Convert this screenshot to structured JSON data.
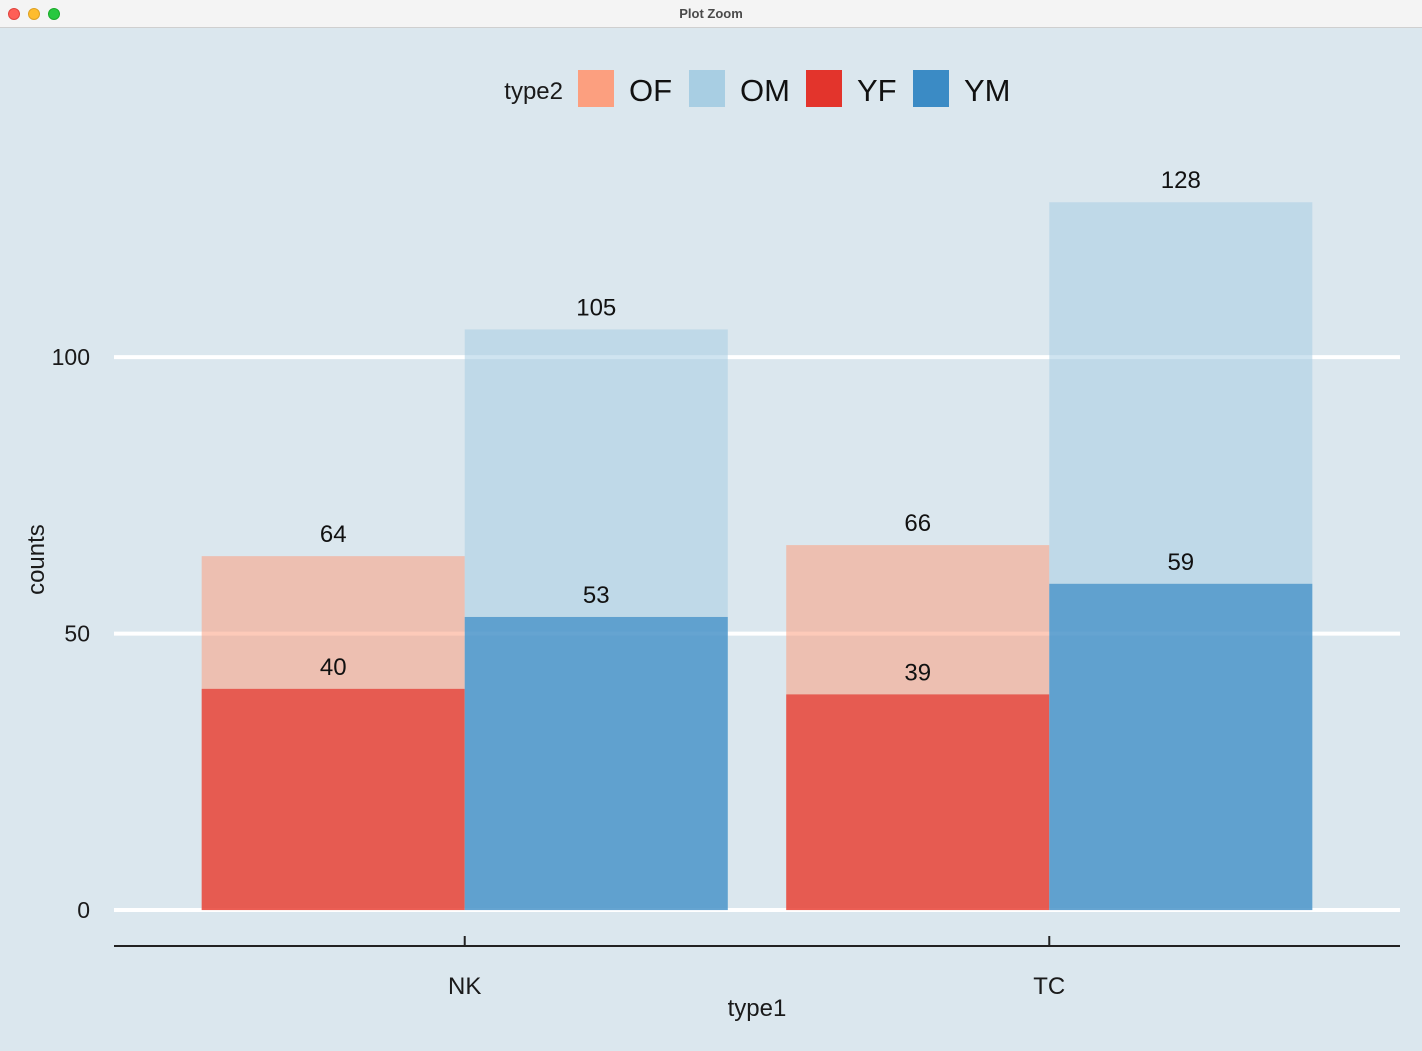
{
  "window": {
    "title": "Plot Zoom"
  },
  "colors": {
    "background": "#dbe7ee",
    "OF": "#fc9f7f",
    "OM": "#a8cee3",
    "YF": "#e3342c",
    "YM": "#3b8bc5"
  },
  "chart_data": {
    "type": "bar",
    "title": "",
    "xlabel": "type1",
    "ylabel": "counts",
    "legend_title": "type2",
    "legend_position": "top",
    "legend": [
      "OF",
      "OM",
      "YF",
      "YM"
    ],
    "categories": [
      "NK",
      "TC"
    ],
    "ylim": [
      -6.5,
      136
    ],
    "yticks": [
      0,
      50,
      100
    ],
    "grid": "horizontal",
    "series": [
      {
        "name": "OF",
        "group": "F",
        "values": [
          64,
          66
        ]
      },
      {
        "name": "YF",
        "group": "F",
        "values": [
          40,
          39
        ]
      },
      {
        "name": "OM",
        "group": "M",
        "values": [
          105,
          128
        ]
      },
      {
        "name": "YM",
        "group": "M",
        "values": [
          53,
          59
        ]
      }
    ]
  }
}
